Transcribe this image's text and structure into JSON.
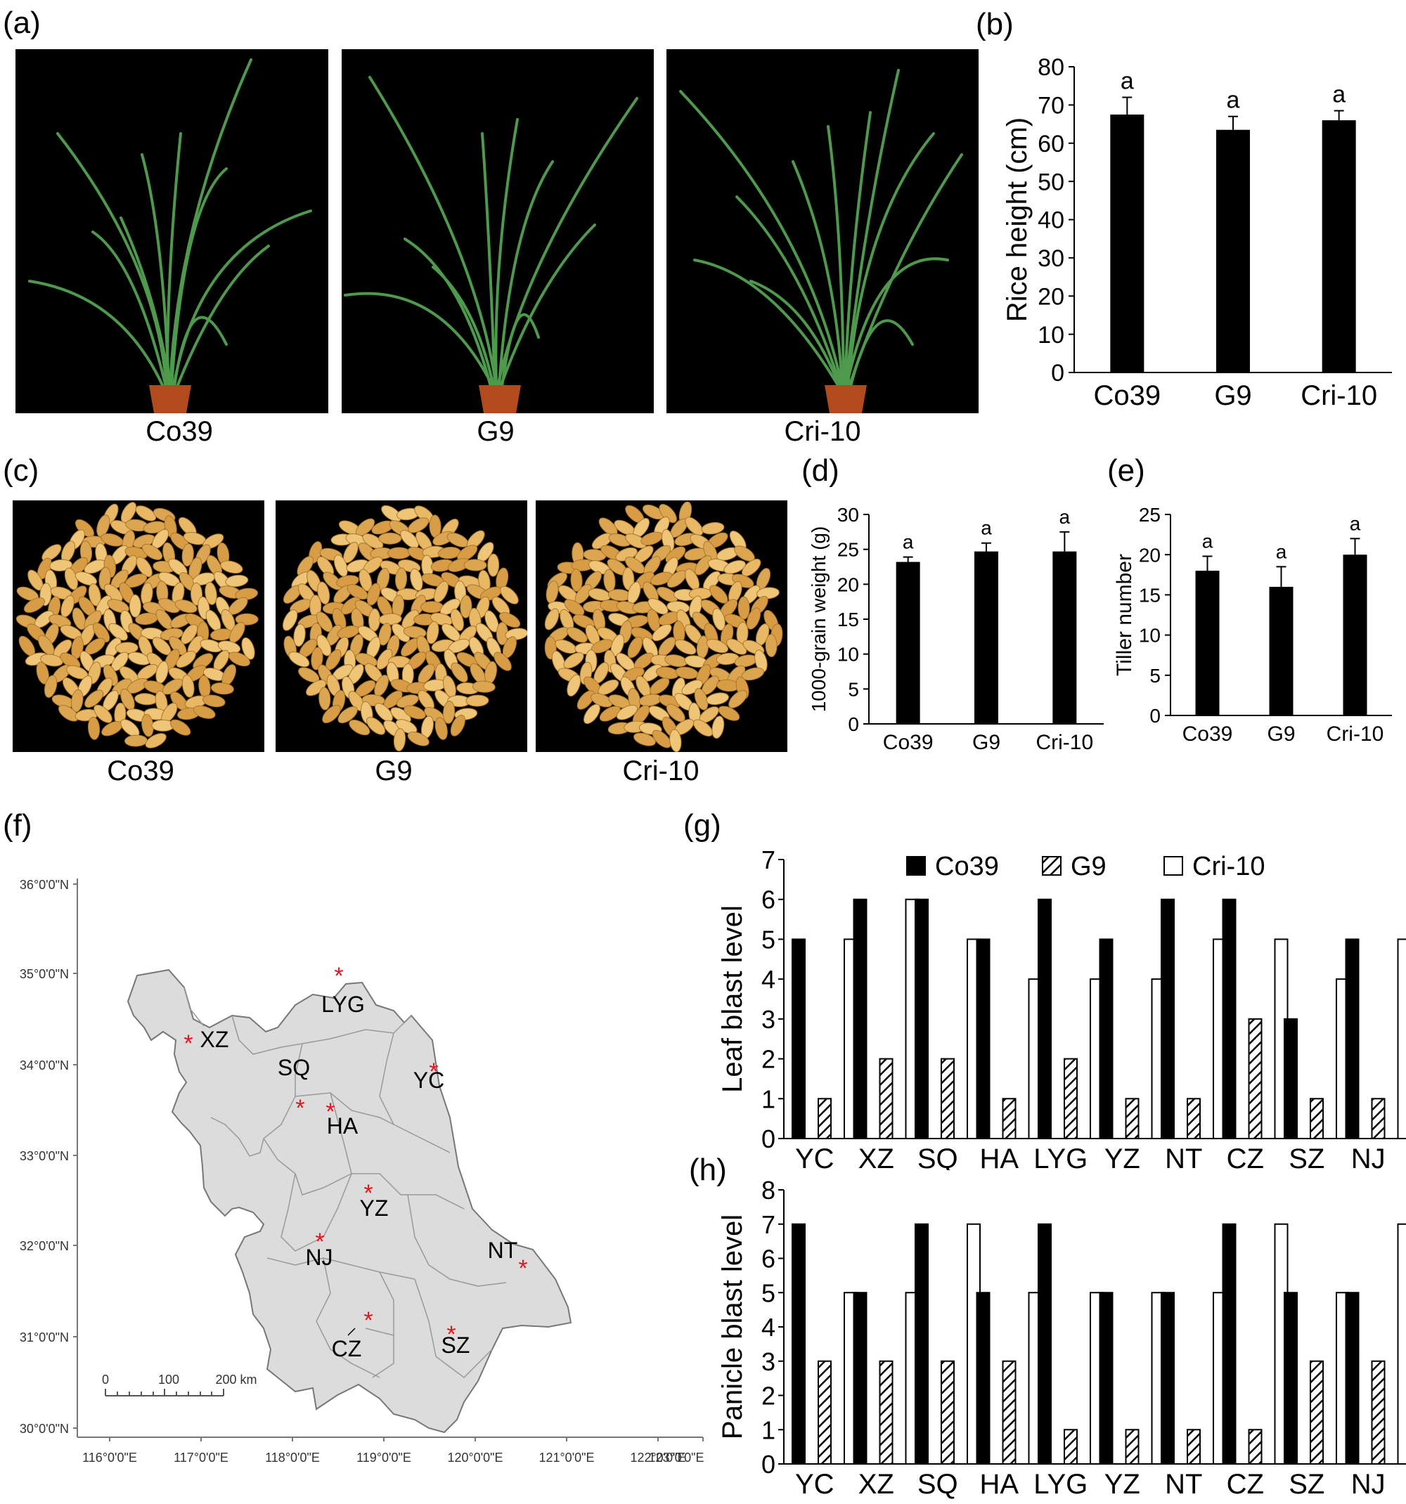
{
  "panels": {
    "a": "(a)",
    "b": "(b)",
    "c": "(c)",
    "d": "(d)",
    "e": "(e)",
    "f": "(f)",
    "g": "(g)",
    "h": "(h)"
  },
  "photos_a": {
    "labels": [
      "Co39",
      "G9",
      "Cri-10"
    ]
  },
  "photos_c": {
    "labels": [
      "Co39",
      "G9",
      "Cri-10"
    ]
  },
  "colors": {
    "bar_black": "#000000",
    "map_fill": "#dcdcdc",
    "star": "#e8141c",
    "grain": "#e2b05c",
    "plant": "#4e9a4c"
  },
  "chart_data": [
    {
      "id": "b",
      "type": "bar",
      "categories": [
        "Co39",
        "G9",
        "Cri-10"
      ],
      "values": [
        67.5,
        63.5,
        66
      ],
      "errors": [
        4.5,
        3.5,
        2.5
      ],
      "sig": [
        "a",
        "a",
        "a"
      ],
      "ylabel": "Rice height (cm)",
      "ylim": [
        0,
        80
      ],
      "yticks": [
        0,
        10,
        20,
        30,
        40,
        50,
        60,
        70,
        80
      ]
    },
    {
      "id": "d",
      "type": "bar",
      "categories": [
        "Co39",
        "G9",
        "Cri-10"
      ],
      "values": [
        23.2,
        24.7,
        24.7
      ],
      "errors": [
        0.7,
        1.2,
        2.8
      ],
      "sig": [
        "a",
        "a",
        "a"
      ],
      "ylabel": "1000-grain weight (g)",
      "ylim": [
        0,
        30
      ],
      "yticks": [
        0,
        5,
        10,
        15,
        20,
        25,
        30
      ]
    },
    {
      "id": "e",
      "type": "bar",
      "categories": [
        "Co39",
        "G9",
        "Cri-10"
      ],
      "values": [
        18,
        16,
        20
      ],
      "errors": [
        1.8,
        2.5,
        2.0
      ],
      "sig": [
        "a",
        "a",
        "a"
      ],
      "ylabel": "Tiller number",
      "ylim": [
        0,
        25
      ],
      "yticks": [
        0,
        5,
        10,
        15,
        20,
        25
      ]
    },
    {
      "id": "g",
      "type": "bar",
      "categories": [
        "YC",
        "XZ",
        "SQ",
        "HA",
        "LYG",
        "YZ",
        "NT",
        "CZ",
        "SZ",
        "NJ"
      ],
      "series": [
        {
          "name": "Co39",
          "values": [
            5,
            6,
            6,
            5,
            6,
            5,
            6,
            6,
            3,
            5
          ]
        },
        {
          "name": "G9",
          "values": [
            1,
            2,
            2,
            1,
            2,
            1,
            1,
            3,
            1,
            1
          ]
        },
        {
          "name": "Cri-10",
          "values": [
            5,
            6,
            5,
            4,
            4,
            4,
            5,
            5,
            4,
            5
          ]
        }
      ],
      "ylabel": "Leaf blast level",
      "ylim": [
        0,
        7
      ],
      "yticks": [
        0,
        1,
        2,
        3,
        4,
        5,
        6,
        7
      ],
      "legend": "top"
    },
    {
      "id": "h",
      "type": "bar",
      "categories": [
        "YC",
        "XZ",
        "SQ",
        "HA",
        "LYG",
        "YZ",
        "NT",
        "CZ",
        "SZ",
        "NJ"
      ],
      "series": [
        {
          "name": "Co39",
          "values": [
            7,
            5,
            7,
            5,
            7,
            5,
            5,
            7,
            5,
            5
          ]
        },
        {
          "name": "G9",
          "values": [
            3,
            3,
            3,
            3,
            1,
            1,
            1,
            1,
            3,
            3
          ]
        },
        {
          "name": "Cri-10",
          "values": [
            5,
            5,
            7,
            5,
            5,
            5,
            5,
            7,
            5,
            7
          ]
        }
      ],
      "ylabel": "Panicle blast level",
      "ylim": [
        0,
        8
      ],
      "yticks": [
        0,
        1,
        2,
        3,
        4,
        5,
        6,
        7,
        8
      ]
    }
  ],
  "map": {
    "lat_labels": [
      "36°0'0\"N",
      "35°0'0\"N",
      "34°0'0\"N",
      "33°0'0\"N",
      "32°0'0\"N",
      "31°0'0\"N",
      "30°0'0\"N"
    ],
    "lon_labels": [
      "116°0'0\"E",
      "117°0'0\"E",
      "118°0'0\"E",
      "119°0'0\"E",
      "120°0'0\"E",
      "121°0'0\"E",
      "122°0'0\"E",
      "123°0'0\"E"
    ],
    "sites": [
      "LYG",
      "XZ",
      "SQ",
      "HA",
      "YC",
      "YZ",
      "NJ",
      "NT",
      "CZ",
      "SZ"
    ],
    "scale": {
      "ticks": [
        "0",
        "100",
        "200 km"
      ]
    }
  }
}
